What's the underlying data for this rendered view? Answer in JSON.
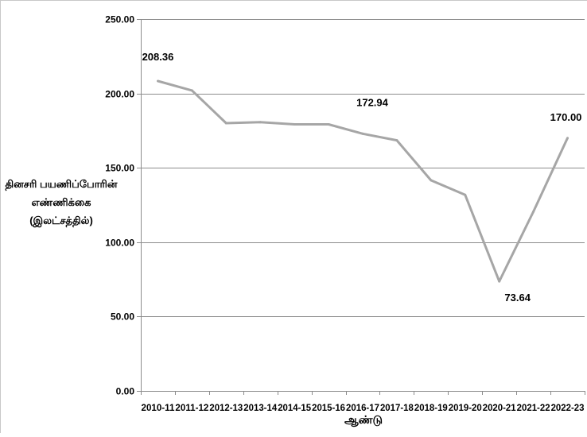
{
  "chart_data": {
    "type": "line",
    "title": "",
    "xlabel": "ஆண்டு",
    "ylabel_lines": [
      "தினசரி பயணிப்போரின்",
      "எண்ணிக்கை",
      "(இலட்சத்தில்)"
    ],
    "categories": [
      "2010-11",
      "2011-12",
      "2012-13",
      "2013-14",
      "2014-15",
      "2015-16",
      "2016-17",
      "2017-18",
      "2018-19",
      "2019-20",
      "2020-21",
      "2021-22",
      "2022-23"
    ],
    "values": [
      208.36,
      202.0,
      180.0,
      180.7,
      179.2,
      179.2,
      172.94,
      168.5,
      141.6,
      131.8,
      73.64,
      120.5,
      170.0
    ],
    "ylim": [
      0,
      250
    ],
    "yticks": [
      "0.00",
      "50.00",
      "100.00",
      "150.00",
      "200.00",
      "250.00"
    ],
    "data_labels": [
      {
        "index": 0,
        "text": "208.36"
      },
      {
        "index": 6,
        "text": "172.94"
      },
      {
        "index": 10,
        "text": "73.64"
      },
      {
        "index": 12,
        "text": "170.00"
      }
    ],
    "grid": true,
    "line_color": "#a6a6a6"
  }
}
